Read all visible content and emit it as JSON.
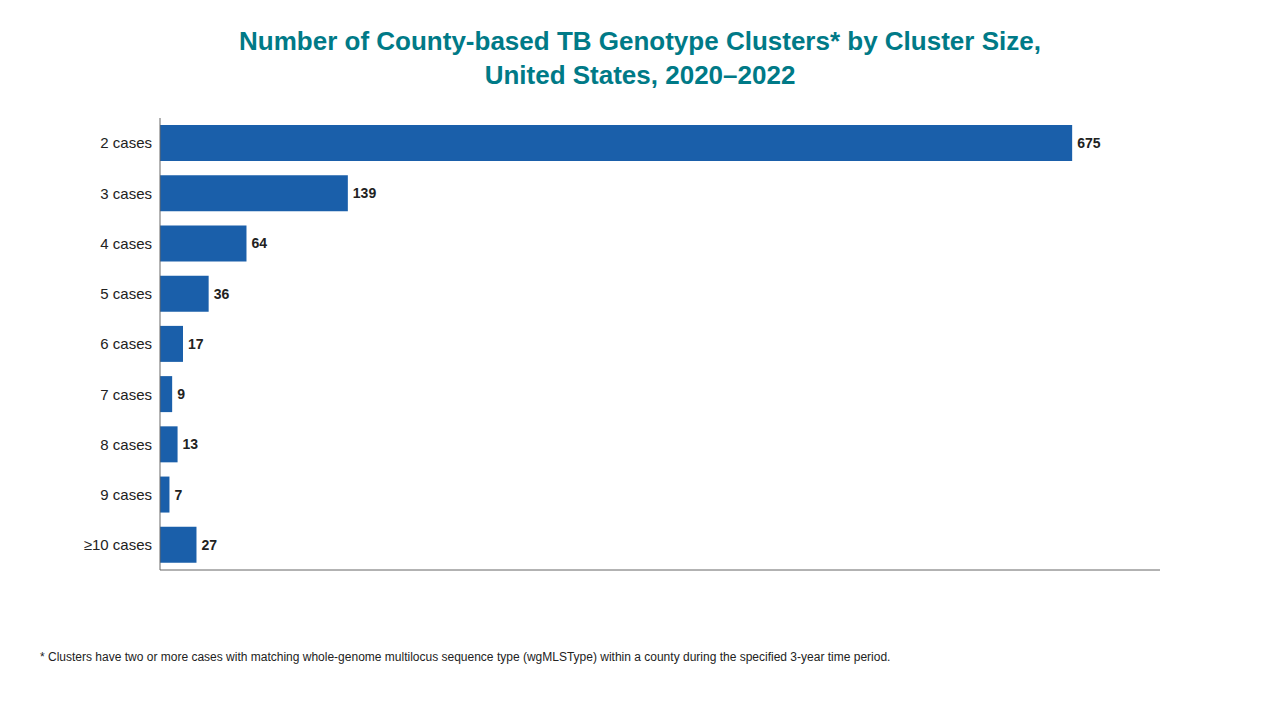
{
  "chart_data": {
    "type": "bar",
    "orientation": "horizontal",
    "title": "Number of County-based TB Genotype Clusters* by Cluster Size,",
    "subtitle": "United States, 2020–2022",
    "categories": [
      "2 cases",
      "3 cases",
      "4 cases",
      "5 cases",
      "6 cases",
      "7 cases",
      "8 cases",
      "9 cases",
      "≥10 cases"
    ],
    "values": [
      675,
      139,
      64,
      36,
      17,
      9,
      13,
      7,
      27
    ],
    "color": "#1a5faa",
    "xlim": [
      0,
      740
    ],
    "xticks": [],
    "tick_labels": "y",
    "data_labels": true,
    "grid": false,
    "footnote": "* Clusters have two or more cases with matching whole-genome multilocus sequence type (wgMLSType) within a county during the specified 3-year time period."
  }
}
